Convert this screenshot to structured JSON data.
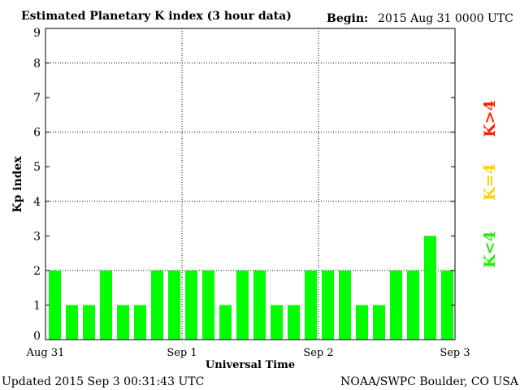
{
  "chart_data": {
    "type": "bar",
    "title": "Estimated Planetary K index (3 hour data)",
    "begin_label": "Begin:",
    "begin_value": "2015 Aug 31 0000 UTC",
    "xlabel": "Universal Time",
    "ylabel": "Kp index",
    "ylim": [
      0,
      9
    ],
    "yticks": [
      "0",
      "1",
      "2",
      "3",
      "4",
      "5",
      "6",
      "7",
      "8",
      "9"
    ],
    "xticks": [
      "Aug 31",
      "Sep 1",
      "Sep 2",
      "Sep 3"
    ],
    "grid": true,
    "values": [
      2,
      1,
      1,
      2,
      1,
      1,
      2,
      2,
      2,
      2,
      1,
      2,
      2,
      1,
      1,
      2,
      2,
      2,
      1,
      1,
      2,
      2,
      3,
      2
    ],
    "bar_colors": {
      "low": "#00ff00",
      "mid": "#ffd700",
      "high": "#ff2000"
    },
    "legend": [
      {
        "label": "K<4",
        "color": "#22ee00"
      },
      {
        "label": "K=4",
        "color": "#ffd200"
      },
      {
        "label": "K>4",
        "color": "#ff2000"
      }
    ],
    "updated": "Updated 2015 Sep  3 00:31:43 UTC",
    "source": "NOAA/SWPC Boulder, CO USA"
  }
}
